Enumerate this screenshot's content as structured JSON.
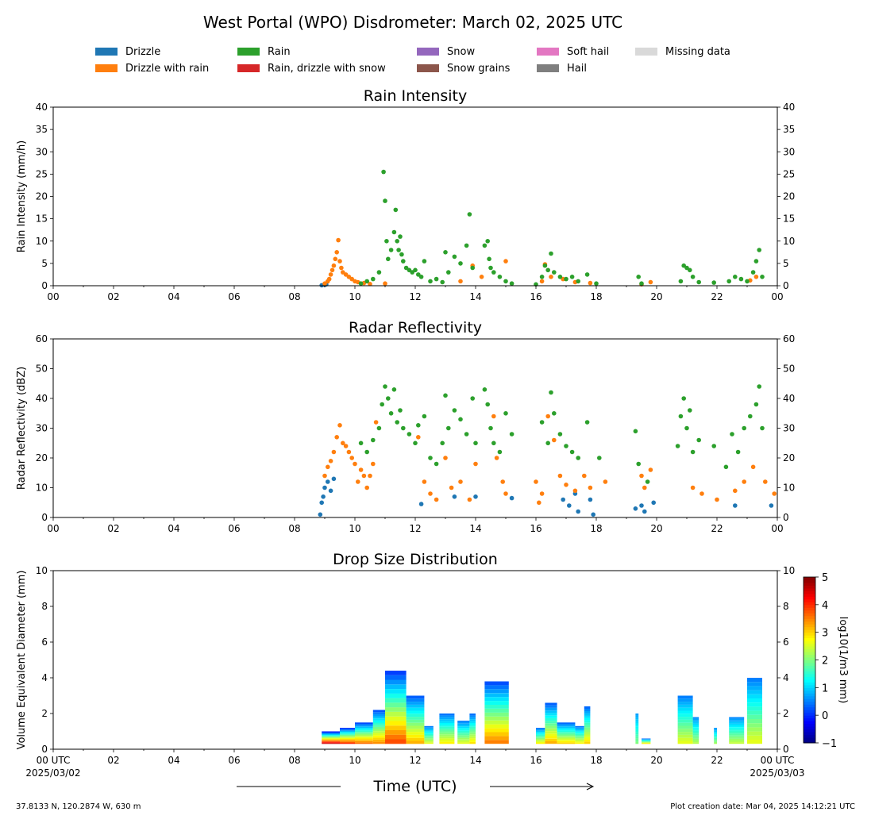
{
  "figure_title": "West Portal (WPO) Disdrometer: March 02, 2025 UTC",
  "legend": [
    {
      "label": "Drizzle",
      "color": "#1f77b4"
    },
    {
      "label": "Drizzle with rain",
      "color": "#ff7f0e"
    },
    {
      "label": "Rain",
      "color": "#2ca02c"
    },
    {
      "label": "Rain, drizzle with snow",
      "color": "#d62728"
    },
    {
      "label": "Snow",
      "color": "#9467bd"
    },
    {
      "label": "Snow grains",
      "color": "#8c564b"
    },
    {
      "label": "Soft hail",
      "color": "#e377c2"
    },
    {
      "label": "Hail",
      "color": "#7f7f7f"
    },
    {
      "label": "Missing data",
      "color": "#d9d9d9"
    }
  ],
  "xlabel": "Time (UTC)",
  "footer": {
    "location": "37.8133 N, 120.2874 W, 630 m",
    "creation": "Plot creation date: Mar 04, 2025 14:12:21 UTC"
  },
  "chart_data": [
    {
      "type": "scatter",
      "title": "Rain Intensity",
      "ylabel": "Rain Intensity (mm/h)",
      "xlim": [
        0,
        24
      ],
      "ylim": [
        0,
        40
      ],
      "yticks": [
        0,
        5,
        10,
        15,
        20,
        25,
        30,
        35,
        40
      ],
      "xticklabels": [
        "00",
        "02",
        "04",
        "06",
        "08",
        "10",
        "12",
        "14",
        "16",
        "18",
        "20",
        "22",
        "00"
      ],
      "series": [
        {
          "name": "Drizzle",
          "color": "#1f77b4",
          "x": [
            8.9,
            9.0,
            9.05
          ],
          "y": [
            0.1,
            0.2,
            0.3
          ]
        },
        {
          "name": "Drizzle with rain",
          "color": "#ff7f0e",
          "x": [
            9.0,
            9.1,
            9.15,
            9.2,
            9.25,
            9.3,
            9.35,
            9.4,
            9.45,
            9.5,
            9.55,
            9.6,
            9.7,
            9.8,
            9.9,
            10.0,
            10.1,
            10.3,
            10.5,
            11.0,
            13.5,
            13.9,
            14.2,
            15.0,
            16.2,
            16.3,
            16.5,
            16.9,
            17.3,
            17.8,
            19.5,
            19.8,
            23.1,
            23.3
          ],
          "y": [
            0.5,
            1.0,
            1.5,
            2.5,
            3.5,
            4.5,
            6.0,
            7.5,
            10.2,
            5.5,
            4.0,
            3.0,
            2.5,
            2.0,
            1.5,
            1.0,
            0.8,
            0.6,
            0.4,
            0.5,
            1.0,
            4.5,
            2.0,
            5.5,
            1.0,
            4.8,
            2.0,
            1.5,
            0.8,
            0.6,
            0.3,
            0.8,
            1.2,
            2.0
          ]
        },
        {
          "name": "Rain",
          "color": "#2ca02c",
          "x": [
            10.2,
            10.4,
            10.6,
            10.8,
            10.95,
            11.0,
            11.05,
            11.1,
            11.2,
            11.3,
            11.35,
            11.4,
            11.45,
            11.5,
            11.55,
            11.6,
            11.7,
            11.8,
            11.9,
            12.0,
            12.1,
            12.2,
            12.3,
            12.5,
            12.7,
            12.9,
            13.0,
            13.1,
            13.3,
            13.5,
            13.7,
            13.8,
            13.9,
            14.3,
            14.4,
            14.45,
            14.5,
            14.6,
            14.8,
            15.0,
            15.2,
            16.0,
            16.2,
            16.3,
            16.4,
            16.5,
            16.6,
            16.8,
            17.0,
            17.2,
            17.4,
            17.7,
            18.0,
            19.4,
            19.5,
            20.8,
            20.9,
            21.0,
            21.1,
            21.2,
            21.4,
            21.9,
            22.4,
            22.6,
            22.8,
            23.0,
            23.2,
            23.3,
            23.4,
            23.5
          ],
          "y": [
            0.5,
            1.0,
            1.5,
            3.0,
            25.5,
            19.0,
            10.0,
            6.0,
            8.0,
            12.0,
            17.0,
            10.0,
            8.0,
            11.0,
            7.0,
            5.5,
            4.0,
            3.5,
            3.0,
            3.5,
            2.5,
            2.0,
            5.5,
            1.0,
            1.5,
            0.8,
            7.5,
            3.0,
            6.5,
            5.0,
            9.0,
            16.0,
            4.0,
            9.0,
            10.0,
            6.0,
            4.0,
            3.0,
            2.0,
            1.0,
            0.5,
            0.3,
            2.0,
            4.5,
            3.5,
            7.2,
            3.0,
            2.0,
            1.5,
            2.0,
            1.0,
            2.5,
            0.5,
            2.0,
            0.5,
            1.0,
            4.5,
            4.0,
            3.5,
            2.0,
            0.8,
            0.7,
            1.0,
            2.0,
            1.5,
            1.0,
            3.0,
            5.5,
            8.0,
            2.0
          ]
        }
      ]
    },
    {
      "type": "scatter",
      "title": "Radar Reflectivity",
      "ylabel": "Radar Reflectivity (dBZ)",
      "xlim": [
        0,
        24
      ],
      "ylim": [
        0,
        60
      ],
      "yticks": [
        0,
        10,
        20,
        30,
        40,
        50,
        60
      ],
      "xticklabels": [
        "00",
        "02",
        "04",
        "06",
        "08",
        "10",
        "12",
        "14",
        "16",
        "18",
        "20",
        "22",
        "00"
      ],
      "series": [
        {
          "name": "Drizzle",
          "color": "#1f77b4",
          "x": [
            8.85,
            8.9,
            8.95,
            9.0,
            9.1,
            9.2,
            9.3,
            12.2,
            13.3,
            14.0,
            15.2,
            16.9,
            17.1,
            17.3,
            17.4,
            17.8,
            17.9,
            19.3,
            19.5,
            19.6,
            19.9,
            22.6,
            23.8
          ],
          "y": [
            1.0,
            5.0,
            7.0,
            10.0,
            12.0,
            9.0,
            13.0,
            4.5,
            7.0,
            7.0,
            6.5,
            6.0,
            4.0,
            8.0,
            2.0,
            6.0,
            1.0,
            3.0,
            4.0,
            2.0,
            5.0,
            4.0,
            4.0
          ]
        },
        {
          "name": "Drizzle with rain",
          "color": "#ff7f0e",
          "x": [
            9.0,
            9.1,
            9.2,
            9.3,
            9.4,
            9.5,
            9.6,
            9.7,
            9.8,
            9.9,
            10.0,
            10.1,
            10.2,
            10.3,
            10.4,
            10.5,
            10.6,
            10.7,
            12.1,
            12.3,
            12.5,
            12.7,
            13.0,
            13.2,
            13.5,
            13.8,
            14.0,
            14.6,
            14.7,
            14.9,
            15.0,
            16.0,
            16.1,
            16.2,
            16.4,
            16.6,
            16.8,
            17.0,
            17.3,
            17.6,
            17.8,
            18.3,
            19.5,
            19.6,
            19.8,
            21.2,
            21.5,
            22.0,
            22.6,
            22.9,
            23.2,
            23.6,
            23.9
          ],
          "y": [
            14.0,
            17.0,
            19.0,
            22.0,
            27.0,
            31.0,
            25.0,
            24.0,
            22.0,
            20.0,
            18.0,
            12.0,
            16.0,
            14.0,
            10.0,
            14.0,
            18.0,
            32.0,
            27.0,
            12.0,
            8.0,
            6.0,
            20.0,
            10.0,
            12.0,
            6.0,
            18.0,
            34.0,
            20.0,
            12.0,
            8.0,
            12.0,
            5.0,
            8.0,
            34.0,
            26.0,
            14.0,
            11.0,
            9.0,
            14.0,
            10.0,
            12.0,
            14.0,
            10.0,
            16.0,
            10.0,
            8.0,
            6.0,
            9.0,
            12.0,
            17.0,
            12.0,
            8.0
          ]
        },
        {
          "name": "Rain",
          "color": "#2ca02c",
          "x": [
            10.2,
            10.4,
            10.6,
            10.8,
            10.9,
            11.0,
            11.1,
            11.2,
            11.3,
            11.4,
            11.5,
            11.6,
            11.8,
            12.0,
            12.1,
            12.3,
            12.5,
            12.7,
            12.9,
            13.0,
            13.1,
            13.3,
            13.5,
            13.7,
            13.9,
            14.0,
            14.3,
            14.4,
            14.5,
            14.6,
            14.8,
            15.0,
            15.2,
            16.2,
            16.4,
            16.5,
            16.6,
            16.8,
            17.0,
            17.2,
            17.4,
            17.7,
            18.1,
            19.3,
            19.4,
            19.7,
            20.7,
            20.8,
            20.9,
            21.0,
            21.1,
            21.2,
            21.4,
            21.9,
            22.3,
            22.5,
            22.7,
            22.9,
            23.1,
            23.3,
            23.4,
            23.5
          ],
          "y": [
            25.0,
            22.0,
            26.0,
            30.0,
            38.0,
            44.0,
            40.0,
            35.0,
            43.0,
            32.0,
            36.0,
            30.0,
            28.0,
            25.0,
            31.0,
            34.0,
            20.0,
            18.0,
            25.0,
            41.0,
            30.0,
            36.0,
            33.0,
            28.0,
            40.0,
            25.0,
            43.0,
            38.0,
            30.0,
            25.0,
            22.0,
            35.0,
            28.0,
            32.0,
            25.0,
            42.0,
            35.0,
            28.0,
            24.0,
            22.0,
            20.0,
            32.0,
            20.0,
            29.0,
            18.0,
            12.0,
            24.0,
            34.0,
            40.0,
            30.0,
            36.0,
            22.0,
            26.0,
            24.0,
            17.0,
            28.0,
            22.0,
            30.0,
            34.0,
            38.0,
            44.0,
            30.0
          ]
        }
      ]
    },
    {
      "type": "heatmap",
      "title": "Drop Size Distribution",
      "ylabel": "Volume Equivalent Diameter (mm)",
      "xlim": [
        0,
        24
      ],
      "ylim": [
        0,
        10
      ],
      "yticks": [
        0,
        2,
        4,
        6,
        8,
        10
      ],
      "xticklabels": [
        "00 UTC\n2025/03/02",
        "02",
        "04",
        "06",
        "08",
        "10",
        "12",
        "14",
        "16",
        "18",
        "20",
        "22",
        "00 UTC\n2025/03/03"
      ],
      "colorbar": {
        "label": "log10(1/m3 mm)",
        "ticks": [
          -1,
          0,
          1,
          2,
          3,
          4,
          5
        ],
        "range": [
          -1,
          5
        ]
      },
      "columns": [
        {
          "start": 8.9,
          "end": 9.5,
          "max_d": 1.0,
          "peak": 4.6
        },
        {
          "start": 9.5,
          "end": 10.0,
          "max_d": 1.2,
          "peak": 4.0
        },
        {
          "start": 10.0,
          "end": 10.6,
          "max_d": 1.5,
          "peak": 3.6
        },
        {
          "start": 10.6,
          "end": 11.0,
          "max_d": 2.2,
          "peak": 3.4
        },
        {
          "start": 11.0,
          "end": 11.7,
          "max_d": 4.4,
          "peak": 3.8
        },
        {
          "start": 11.7,
          "end": 12.3,
          "max_d": 3.0,
          "peak": 3.2
        },
        {
          "start": 12.3,
          "end": 12.6,
          "max_d": 1.3,
          "peak": 2.6
        },
        {
          "start": 12.8,
          "end": 13.3,
          "max_d": 2.0,
          "peak": 2.8
        },
        {
          "start": 13.4,
          "end": 13.8,
          "max_d": 1.6,
          "peak": 2.6
        },
        {
          "start": 13.8,
          "end": 14.0,
          "max_d": 2.0,
          "peak": 2.9
        },
        {
          "start": 14.3,
          "end": 15.1,
          "max_d": 3.8,
          "peak": 3.5
        },
        {
          "start": 16.0,
          "end": 16.3,
          "max_d": 1.2,
          "peak": 2.8
        },
        {
          "start": 16.3,
          "end": 16.7,
          "max_d": 2.6,
          "peak": 3.2
        },
        {
          "start": 16.7,
          "end": 17.3,
          "max_d": 1.5,
          "peak": 3.0
        },
        {
          "start": 17.3,
          "end": 17.6,
          "max_d": 1.3,
          "peak": 2.8
        },
        {
          "start": 17.6,
          "end": 17.8,
          "max_d": 2.4,
          "peak": 3.0
        },
        {
          "start": 19.3,
          "end": 19.4,
          "max_d": 2.0,
          "peak": 2.0
        },
        {
          "start": 19.5,
          "end": 19.8,
          "max_d": 0.6,
          "peak": 3.0
        },
        {
          "start": 20.7,
          "end": 21.2,
          "max_d": 3.0,
          "peak": 2.6
        },
        {
          "start": 21.2,
          "end": 21.4,
          "max_d": 1.8,
          "peak": 2.3
        },
        {
          "start": 21.9,
          "end": 22.0,
          "max_d": 1.2,
          "peak": 2.2
        },
        {
          "start": 22.4,
          "end": 22.9,
          "max_d": 1.8,
          "peak": 2.4
        },
        {
          "start": 23.0,
          "end": 23.5,
          "max_d": 4.0,
          "peak": 2.6
        }
      ]
    }
  ]
}
